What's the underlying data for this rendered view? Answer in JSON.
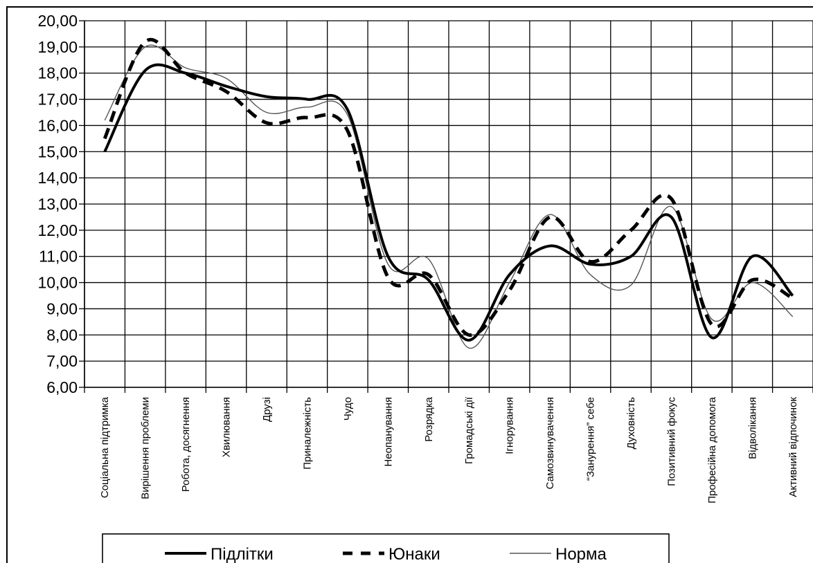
{
  "chart_data": {
    "type": "line",
    "title": "",
    "xlabel": "",
    "ylabel": "",
    "ylim": [
      6,
      20
    ],
    "y_step": 1,
    "grid": true,
    "legend_position": "bottom",
    "categories": [
      "Соціальна підтримка",
      "Вирішення проблеми",
      "Робота, досягнення",
      "Хвилювання",
      "Друзі",
      "Приналежність",
      "Чудо",
      "Неопанування",
      "Розрядка",
      "Громадські дії",
      "Ігнорування",
      "Самозвинувачення",
      "“Занурення” себе",
      "Духовність",
      "Позитивний фокус",
      "Професійна допомога",
      "Відволікання",
      "Активний відпочинок"
    ],
    "series": [
      {
        "name": "Підлітки",
        "style": "solid-thick",
        "color": "#000000",
        "values": [
          15.0,
          18.1,
          18.0,
          17.5,
          17.1,
          17.0,
          16.6,
          11.0,
          10.1,
          7.8,
          10.3,
          11.4,
          10.7,
          11.0,
          12.5,
          7.9,
          11.0,
          9.5
        ]
      },
      {
        "name": "Юнаки",
        "style": "dashed",
        "color": "#000000",
        "values": [
          15.5,
          19.2,
          18.0,
          17.3,
          16.1,
          16.3,
          15.8,
          10.2,
          10.3,
          8.0,
          9.7,
          12.5,
          10.8,
          12.0,
          13.2,
          8.4,
          10.1,
          9.4
        ]
      },
      {
        "name": "Норма",
        "style": "solid-thin",
        "color": "#555555",
        "values": [
          16.2,
          19.0,
          18.2,
          17.8,
          16.5,
          16.7,
          16.4,
          10.7,
          10.9,
          7.5,
          10.0,
          12.6,
          10.3,
          9.9,
          12.9,
          8.6,
          10.0,
          8.7
        ]
      }
    ]
  }
}
